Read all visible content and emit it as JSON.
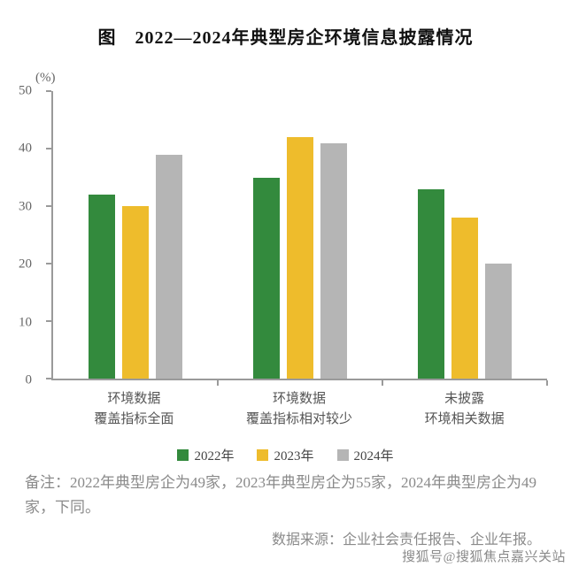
{
  "title": "图　2022—2024年典型房企环境信息披露情况",
  "chart_data": {
    "type": "bar",
    "unit_label": "(%)",
    "categories": [
      [
        "环境数据",
        "覆盖指标全面"
      ],
      [
        "环境数据",
        "覆盖指标相对较少"
      ],
      [
        "未披露",
        "环境相关数据"
      ]
    ],
    "series": [
      {
        "name": "2022年",
        "color": "#338a3d",
        "values": [
          32,
          35,
          33
        ]
      },
      {
        "name": "2023年",
        "color": "#eebc2c",
        "values": [
          30,
          42,
          28
        ]
      },
      {
        "name": "2024年",
        "color": "#b5b5b5",
        "values": [
          39,
          41,
          20
        ]
      }
    ],
    "ylim": [
      0,
      50
    ],
    "yticks": [
      0,
      10,
      20,
      30,
      40,
      50
    ],
    "grid": false,
    "legend_position": "bottom",
    "axis_color": "#9a9a9a"
  },
  "note": "备注：2022年典型房企为49家，2023年典型房企为55家，2024年典型房企为49家，下同。",
  "source": "数据来源：企业社会责任报告、企业年报。",
  "watermark": "搜狐号@搜狐焦点嘉兴关站"
}
